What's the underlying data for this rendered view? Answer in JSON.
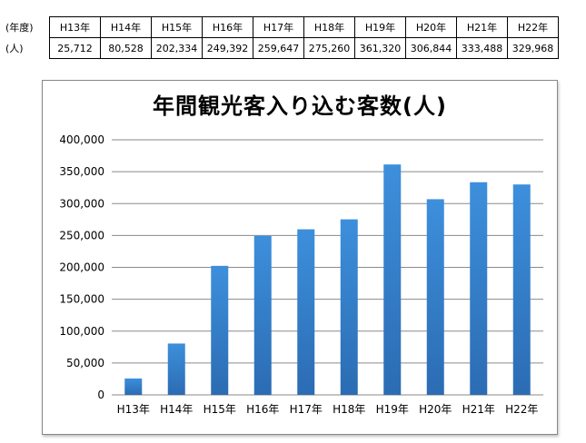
{
  "table": {
    "row_headers": [
      "(年度)",
      "(人)"
    ],
    "years": [
      "H13年",
      "H14年",
      "H15年",
      "H16年",
      "H17年",
      "H18年",
      "H19年",
      "H20年",
      "H21年",
      "H22年"
    ],
    "counts": [
      "25,712",
      "80,528",
      "202,334",
      "249,392",
      "259,647",
      "275,260",
      "361,320",
      "306,844",
      "333,488",
      "329,968"
    ]
  },
  "chart_data": {
    "type": "bar",
    "title": "年間観光客入り込む客数(人)",
    "categories": [
      "H13年",
      "H14年",
      "H15年",
      "H16年",
      "H17年",
      "H18年",
      "H19年",
      "H20年",
      "H21年",
      "H22年"
    ],
    "values": [
      25712,
      80528,
      202334,
      249392,
      259647,
      275260,
      361320,
      306844,
      333488,
      329968
    ],
    "ylim": [
      0,
      400000
    ],
    "yticks": [
      "0",
      "50,000",
      "100,000",
      "150,000",
      "200,000",
      "250,000",
      "300,000",
      "350,000",
      "400,000"
    ],
    "xlabel": "",
    "ylabel": "",
    "grid": true,
    "legend": false,
    "colors": {
      "bar_top": "#3d8fdc",
      "bar_bottom": "#2b6cb3",
      "grid": "#8a8a8a"
    }
  }
}
